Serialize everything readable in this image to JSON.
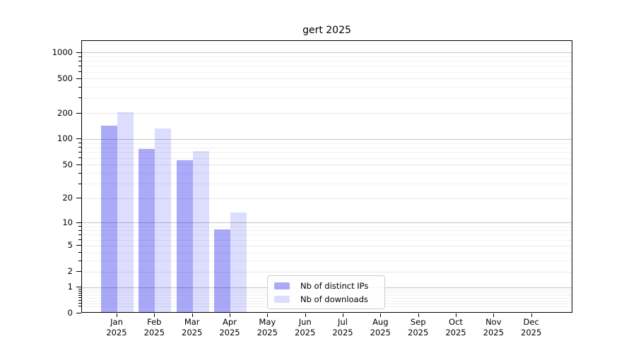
{
  "page": {
    "background": "#ffffff"
  },
  "chart_data": {
    "type": "bar",
    "title": "gert 2025",
    "categories": [
      "Jan 2025",
      "Feb 2025",
      "Mar 2025",
      "Apr 2025",
      "May 2025",
      "Jun 2025",
      "Jul 2025",
      "Aug 2025",
      "Sep 2025",
      "Oct 2025",
      "Nov 2025",
      "Dec 2025"
    ],
    "series": [
      {
        "name": "Nb of distinct IPs",
        "values": [
          140,
          74,
          55,
          8,
          0,
          0,
          0,
          0,
          0,
          0,
          0,
          0
        ],
        "color_hex": "#aaaaf9",
        "fill": "rgba(0,0,238,0.335)"
      },
      {
        "name": "Nb of downloads",
        "values": [
          200,
          130,
          70,
          13,
          0,
          0,
          0,
          0,
          0,
          0,
          0,
          0
        ],
        "color_hex": "#ddddfc",
        "fill": "rgba(0,0,238,0.135)"
      }
    ],
    "yscale": "log1p",
    "yticks": [
      0,
      1,
      2,
      5,
      10,
      20,
      50,
      100,
      200,
      500,
      1000
    ],
    "ylim": [
      0,
      1372
    ],
    "xlabel": "",
    "ylabel": "",
    "grid": true,
    "legend_position": "lower center"
  },
  "colors": {
    "grid_major": "#c6c6c6",
    "grid_mid": "#e9e9e9",
    "grid_minor": "#f1f1f1",
    "axis": "#000000",
    "legend_border": "#cccccc"
  }
}
